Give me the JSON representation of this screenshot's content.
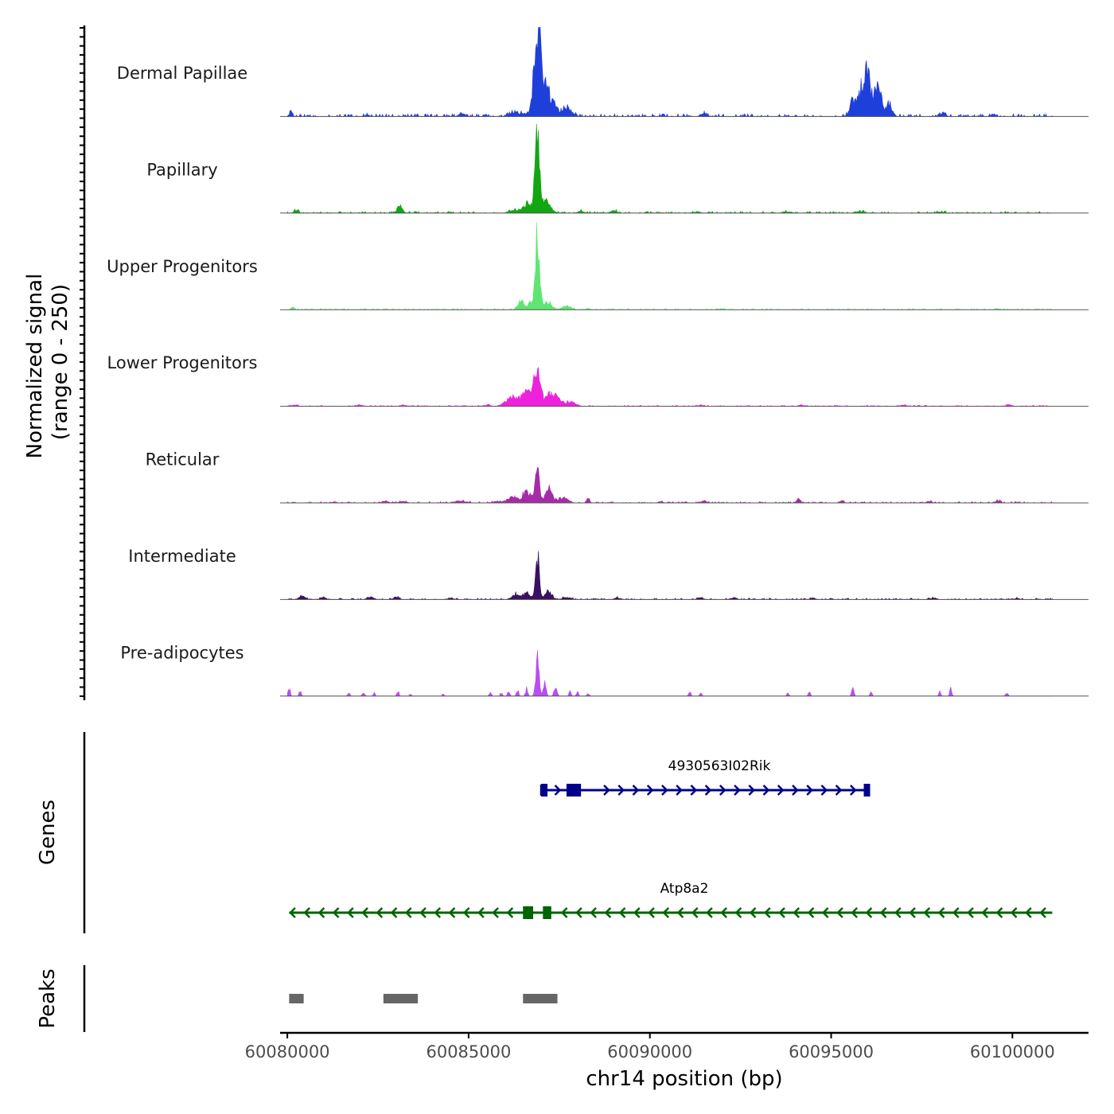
{
  "chart_data": {
    "type": "area",
    "ylabel_line1": "Normalized signal",
    "ylabel_line2": "(range 0 - 250)",
    "ylim": [
      0,
      250
    ],
    "xlabel": "chr14 position (bp)",
    "xlim": [
      60079800,
      60102100
    ],
    "x_ticks": [
      60080000,
      60085000,
      60090000,
      60095000,
      60100000
    ],
    "x_tick_labels": [
      "60080000",
      "60085000",
      "60090000",
      "60095000",
      "60100000"
    ],
    "data_range": [
      60080000,
      60101100
    ],
    "tracks": [
      {
        "name": "Dermal Papillae",
        "color": "#1f3fdb",
        "noise": 0.03,
        "seed": 11,
        "peaks": [
          [
            60080100,
            14,
            40
          ],
          [
            60082200,
            4,
            60
          ],
          [
            60084800,
            6,
            80
          ],
          [
            60086300,
            12,
            150
          ],
          [
            60086900,
            175,
            90
          ],
          [
            60087000,
            90,
            160
          ],
          [
            60087300,
            32,
            120
          ],
          [
            60087700,
            22,
            140
          ],
          [
            60091500,
            8,
            80
          ],
          [
            60095600,
            45,
            80
          ],
          [
            60095950,
            130,
            130
          ],
          [
            60096300,
            80,
            90
          ],
          [
            60096600,
            35,
            80
          ],
          [
            60098100,
            12,
            60
          ],
          [
            60099500,
            6,
            60
          ]
        ]
      },
      {
        "name": "Papillary",
        "color": "#13a613",
        "noise": 0.02,
        "seed": 23,
        "peaks": [
          [
            60080250,
            8,
            60
          ],
          [
            60083100,
            20,
            70
          ],
          [
            60086300,
            8,
            150
          ],
          [
            60086650,
            25,
            120
          ],
          [
            60086900,
            240,
            60
          ],
          [
            60087150,
            30,
            120
          ],
          [
            60088100,
            6,
            80
          ],
          [
            60089000,
            8,
            80
          ],
          [
            60091300,
            4,
            80
          ],
          [
            60093800,
            4,
            80
          ],
          [
            60095800,
            4,
            100
          ],
          [
            60098000,
            3,
            100
          ]
        ]
      },
      {
        "name": "Upper Progenitors",
        "color": "#5ee572",
        "noise": 0.012,
        "seed": 37,
        "peaks": [
          [
            60080150,
            8,
            40
          ],
          [
            60086450,
            25,
            80
          ],
          [
            60086700,
            20,
            60
          ],
          [
            60086900,
            210,
            60
          ],
          [
            60087200,
            20,
            100
          ],
          [
            60087700,
            10,
            120
          ],
          [
            60088300,
            3,
            60
          ],
          [
            60092000,
            2,
            80
          ],
          [
            60099600,
            2,
            80
          ]
        ]
      },
      {
        "name": "Lower Progenitors",
        "color": "#ee22dd",
        "noise": 0.012,
        "seed": 41,
        "peaks": [
          [
            60080200,
            3,
            80
          ],
          [
            60082000,
            4,
            80
          ],
          [
            60083200,
            3,
            80
          ],
          [
            60085500,
            3,
            80
          ],
          [
            60086200,
            25,
            160
          ],
          [
            60086650,
            40,
            160
          ],
          [
            60086900,
            100,
            80
          ],
          [
            60087300,
            35,
            170
          ],
          [
            60087800,
            12,
            140
          ],
          [
            60091400,
            3,
            80
          ],
          [
            60094200,
            3,
            80
          ],
          [
            60097000,
            3,
            80
          ],
          [
            60099900,
            4,
            80
          ]
        ]
      },
      {
        "name": "Reticular",
        "color": "#a62ba6",
        "noise": 0.015,
        "seed": 53,
        "peaks": [
          [
            60081300,
            3,
            60
          ],
          [
            60082700,
            5,
            80
          ],
          [
            60083200,
            4,
            80
          ],
          [
            60084800,
            5,
            120
          ],
          [
            60085800,
            4,
            100
          ],
          [
            60086200,
            14,
            120
          ],
          [
            60086600,
            30,
            130
          ],
          [
            60086900,
            80,
            60
          ],
          [
            60087200,
            40,
            100
          ],
          [
            60087600,
            16,
            120
          ],
          [
            60088300,
            12,
            40
          ],
          [
            60090300,
            4,
            60
          ],
          [
            60091500,
            6,
            60
          ],
          [
            60094100,
            10,
            50
          ],
          [
            60095300,
            4,
            60
          ],
          [
            60097700,
            4,
            60
          ],
          [
            60099600,
            6,
            60
          ]
        ]
      },
      {
        "name": "Intermediate",
        "color": "#3a1060",
        "noise": 0.015,
        "seed": 67,
        "peaks": [
          [
            60080400,
            8,
            80
          ],
          [
            60081000,
            5,
            80
          ],
          [
            60082300,
            6,
            80
          ],
          [
            60083000,
            6,
            80
          ],
          [
            60084500,
            4,
            80
          ],
          [
            60086300,
            14,
            100
          ],
          [
            60086600,
            18,
            100
          ],
          [
            60086900,
            118,
            50
          ],
          [
            60087200,
            20,
            90
          ],
          [
            60087700,
            6,
            100
          ],
          [
            60089100,
            4,
            80
          ],
          [
            60091400,
            4,
            80
          ],
          [
            60092300,
            4,
            80
          ],
          [
            60094500,
            3,
            80
          ],
          [
            60097800,
            4,
            80
          ],
          [
            60100100,
            3,
            80
          ]
        ]
      },
      {
        "name": "Pre-adipocytes",
        "color": "#b94ef0",
        "noise": 0.0,
        "seed": 79,
        "peaks": [
          [
            60080050,
            22,
            30
          ],
          [
            60080350,
            14,
            30
          ],
          [
            60081700,
            10,
            30
          ],
          [
            60082100,
            12,
            30
          ],
          [
            60082400,
            8,
            30
          ],
          [
            60083050,
            14,
            30
          ],
          [
            60083400,
            6,
            30
          ],
          [
            60084300,
            6,
            30
          ],
          [
            60085600,
            10,
            30
          ],
          [
            60085900,
            8,
            30
          ],
          [
            60086100,
            14,
            30
          ],
          [
            60086350,
            16,
            30
          ],
          [
            60086600,
            22,
            30
          ],
          [
            60086900,
            100,
            45
          ],
          [
            60087100,
            40,
            40
          ],
          [
            60087400,
            28,
            40
          ],
          [
            60087800,
            12,
            30
          ],
          [
            60088000,
            12,
            30
          ],
          [
            60088300,
            8,
            30
          ],
          [
            60091100,
            12,
            30
          ],
          [
            60091400,
            8,
            30
          ],
          [
            60093800,
            8,
            30
          ],
          [
            60094400,
            10,
            30
          ],
          [
            60095600,
            25,
            30
          ],
          [
            60096100,
            10,
            30
          ],
          [
            60098000,
            12,
            30
          ],
          [
            60098300,
            22,
            30
          ],
          [
            60099850,
            8,
            40
          ]
        ]
      }
    ],
    "genes_label": "Genes",
    "genes": [
      {
        "name": "4930563I02Rik",
        "strand": "+",
        "color": "#00008b",
        "start": 60087000,
        "end": 60096000,
        "exons": [
          [
            60087000,
            60087120
          ],
          [
            60087700,
            60088100
          ],
          [
            60095900,
            60096030
          ]
        ],
        "arrows": [
          60087450,
          60088800,
          60089200,
          60089600,
          60090000,
          60090400,
          60090800,
          60091200,
          60091600,
          60092000,
          60092400,
          60092800,
          60093200,
          60093600,
          60094000,
          60094400,
          60094800,
          60095200,
          60095600
        ]
      },
      {
        "name": "Atp8a2",
        "strand": "-",
        "color": "#006400",
        "start": 60080050,
        "end": 60101100,
        "exons": [
          [
            60086500,
            60086780
          ],
          [
            60087050,
            60087280
          ]
        ],
        "arrows": [
          60080150,
          60080550,
          60080950,
          60081350,
          60081750,
          60082150,
          60082550,
          60082950,
          60083350,
          60083750,
          60084150,
          60084550,
          60084950,
          60085350,
          60085750,
          60086150,
          60087650,
          60088050,
          60088450,
          60088850,
          60089250,
          60089650,
          60090050,
          60090450,
          60090850,
          60091250,
          60091650,
          60092050,
          60092450,
          60092850,
          60093250,
          60093650,
          60094050,
          60094450,
          60094850,
          60095250,
          60095650,
          60096050,
          60096450,
          60096850,
          60097250,
          60097650,
          60098050,
          60098450,
          60098850,
          60099250,
          60099650,
          60100050,
          60100450,
          60100850
        ]
      }
    ],
    "peaks_label": "Peaks",
    "peaks_color": "#666666",
    "peak_regions": [
      [
        60080050,
        60080450
      ],
      [
        60082650,
        60083600
      ],
      [
        60086500,
        60087450
      ]
    ]
  }
}
